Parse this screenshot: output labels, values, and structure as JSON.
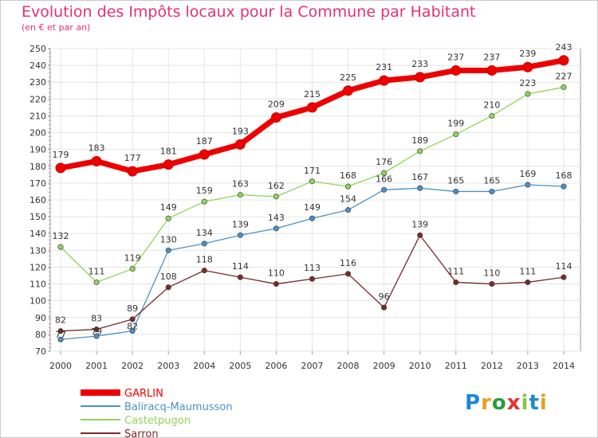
{
  "title": "Evolution des Impôts locaux pour la Commune par Habitant",
  "subtitle": "(en € et par an)",
  "logo": {
    "text": "Proxiti",
    "letters": [
      "P",
      "r",
      "o",
      "x",
      "i",
      "t",
      "i"
    ],
    "colors": [
      "#1e88d6",
      "#e8a020",
      "#2a9d3a",
      "#e83030",
      "#8bc34a",
      "#1e88d6",
      "#e8a020"
    ]
  },
  "chart_data": {
    "type": "line",
    "title": "Evolution des Impôts locaux pour la Commune par Habitant",
    "subtitle": "(en € et par an)",
    "xlabel": "",
    "ylabel": "",
    "x": [
      "2000",
      "2001",
      "2002",
      "2003",
      "2004",
      "2005",
      "2006",
      "2007",
      "2008",
      "2009",
      "2010",
      "2011",
      "2012",
      "2013",
      "2014"
    ],
    "ylim": [
      70,
      250
    ],
    "yticks": [
      70,
      80,
      90,
      100,
      110,
      120,
      130,
      140,
      150,
      160,
      170,
      180,
      190,
      200,
      210,
      220,
      230,
      240,
      250
    ],
    "grid": true,
    "legend_position": "bottom-left",
    "series": [
      {
        "name": "GARLIN",
        "color": "#ee0000",
        "values": [
          179,
          183,
          177,
          181,
          187,
          193,
          209,
          215,
          225,
          231,
          233,
          237,
          237,
          239,
          243
        ],
        "labels": [
          "179",
          "183",
          "177",
          "181",
          "187",
          "193",
          "209",
          "215",
          "225",
          "231",
          "233",
          "237",
          "237",
          "239",
          "243"
        ]
      },
      {
        "name": "Baliracq-Maumusson",
        "color": "#4a90c8",
        "values": [
          77,
          79,
          82,
          130,
          134,
          139,
          143,
          149,
          154,
          166,
          167,
          165,
          165,
          169,
          168
        ],
        "labels": [
          "77",
          "79",
          "82",
          "130",
          "134",
          "139",
          "143",
          "149",
          "154",
          "166",
          "167",
          "165",
          "165",
          "169",
          "168"
        ]
      },
      {
        "name": "Castetpugon",
        "color": "#8fd45a",
        "values": [
          132,
          111,
          119,
          149,
          159,
          163,
          162,
          171,
          168,
          176,
          189,
          199,
          210,
          223,
          227
        ],
        "labels": [
          "132",
          "111",
          "119",
          "149",
          "159",
          "163",
          "162",
          "171",
          "168",
          "176",
          "189",
          "199",
          "210",
          "223",
          "227"
        ]
      },
      {
        "name": "Sarron",
        "color": "#7a2a2a",
        "values": [
          82,
          83,
          89,
          108,
          118,
          114,
          110,
          113,
          116,
          96,
          139,
          111,
          110,
          111,
          114
        ],
        "labels": [
          "82",
          "83",
          "89",
          "108",
          "118",
          "114",
          "110",
          "113",
          "116",
          "96",
          "139",
          "111",
          "110",
          "111",
          "114"
        ]
      }
    ]
  }
}
